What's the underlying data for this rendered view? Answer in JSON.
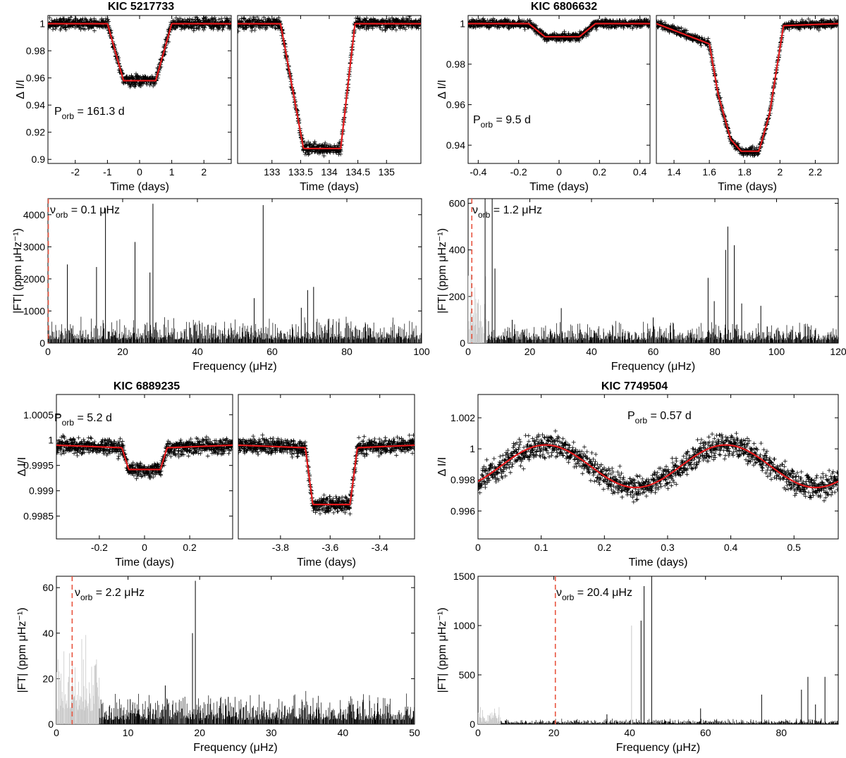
{
  "chart_data": [
    {
      "id": "kic5217733-lc",
      "type": "scatter",
      "title": "KIC 5217733",
      "ylabel": "Δ I/I",
      "ylim": [
        0.897,
        1.006
      ],
      "yticks": [
        "0.9",
        "0.92",
        "0.94",
        "0.96",
        "0.98",
        "1"
      ],
      "annotation": {
        "main": "P",
        "sub": "orb",
        "rest": " = 161.3 d"
      },
      "colors": {
        "points": "#000000",
        "model": "#e41a1c"
      },
      "panels": [
        {
          "xlabel": "Time (days)",
          "xlim": [
            -2.85,
            2.85
          ],
          "xticks": [
            "-2",
            "-1",
            "0",
            "1",
            "2"
          ],
          "model": {
            "x": [
              -2.85,
              -1.0,
              -0.5,
              0.5,
              1.0,
              2.85
            ],
            "y": [
              1.0,
              1.0,
              0.958,
              0.958,
              1.0,
              1.0
            ]
          }
        },
        {
          "xlabel": "Time (days)",
          "xlim": [
            132.4,
            135.6
          ],
          "xticks": [
            "133",
            "133.5",
            "134",
            "134.5",
            "135"
          ],
          "model": {
            "x": [
              132.4,
              133.15,
              133.55,
              134.2,
              134.45,
              135.6
            ],
            "y": [
              1.0,
              1.0,
              0.908,
              0.908,
              1.0,
              1.0
            ]
          }
        }
      ]
    },
    {
      "id": "kic5217733-ft",
      "type": "line",
      "xlabel": "Frequency (μHz)",
      "ylabel": "|FT| (ppm μHz⁻¹)",
      "xlim": [
        0,
        100
      ],
      "ylim": [
        0,
        4500
      ],
      "xticks": [
        "0",
        "20",
        "40",
        "60",
        "80",
        "100"
      ],
      "yticks": [
        "0",
        "1000",
        "2000",
        "3000",
        "4000"
      ],
      "nu_orb": 0.1,
      "annotation": {
        "main": "ν",
        "sub": "orb",
        "rest": " = 0.1 μHz"
      },
      "peaks": [
        [
          5.2,
          2450
        ],
        [
          13.0,
          2370
        ],
        [
          15.4,
          4200
        ],
        [
          23.3,
          3150
        ],
        [
          27.3,
          2200
        ],
        [
          28.1,
          4340
        ],
        [
          57.6,
          4300
        ],
        [
          55.2,
          1400
        ],
        [
          69.5,
          1650
        ],
        [
          71.1,
          1750
        ],
        [
          67.8,
          1100
        ],
        [
          75.0,
          700
        ],
        [
          85.0,
          600
        ]
      ],
      "noise_level": 350
    },
    {
      "id": "kic6806632-lc",
      "type": "scatter",
      "title": "KIC 6806632",
      "ylabel": "Δ I/I",
      "ylim": [
        0.931,
        1.004
      ],
      "yticks": [
        "0.94",
        "0.96",
        "0.98",
        "1"
      ],
      "annotation": {
        "main": "P",
        "sub": "orb",
        "rest": " = 9.5 d"
      },
      "colors": {
        "points": "#000000",
        "model": "#e41a1c"
      },
      "panels": [
        {
          "xlabel": "Time (days)",
          "xlim": [
            -0.45,
            0.45
          ],
          "xticks": [
            "-0.4",
            "-0.2",
            "0",
            "0.2",
            "0.4"
          ],
          "model": {
            "x": [
              -0.45,
              -0.15,
              -0.07,
              0.1,
              0.18,
              0.45
            ],
            "y": [
              1.0,
              1.0,
              0.9935,
              0.9935,
              1.0,
              1.0
            ]
          }
        },
        {
          "xlabel": "Time (days)",
          "xlim": [
            1.3,
            2.33
          ],
          "xticks": [
            "1.4",
            "1.6",
            "1.8",
            "2",
            "2.2"
          ],
          "model": {
            "x": [
              1.3,
              1.6,
              1.65,
              1.72,
              1.78,
              1.88,
              1.94,
              2.02,
              2.33
            ],
            "y": [
              1.0,
              0.99,
              0.965,
              0.943,
              0.937,
              0.937,
              0.955,
              0.999,
              1.0
            ]
          }
        }
      ]
    },
    {
      "id": "kic6806632-ft",
      "type": "line",
      "xlabel": "Frequency (μHz)",
      "ylabel": "|FT| (ppm μHz⁻¹)",
      "xlim": [
        0,
        120
      ],
      "ylim": [
        0,
        620
      ],
      "xticks": [
        "0",
        "20",
        "40",
        "60",
        "80",
        "100",
        "120"
      ],
      "yticks": [
        "0",
        "200",
        "400",
        "600"
      ],
      "nu_orb": 1.2,
      "annotation": {
        "main": "ν",
        "sub": "orb",
        "rest": " = 1.2 μHz"
      },
      "gray_until": 6,
      "peaks": [
        [
          5.5,
          620
        ],
        [
          7.8,
          620
        ],
        [
          8.7,
          320
        ],
        [
          14.3,
          100
        ],
        [
          30.2,
          150
        ],
        [
          60.0,
          110
        ],
        [
          77.8,
          280
        ],
        [
          79.8,
          180
        ],
        [
          84.2,
          500
        ],
        [
          83.5,
          400
        ],
        [
          86.3,
          420
        ],
        [
          88.7,
          170
        ],
        [
          94.9,
          160
        ],
        [
          97.0,
          70
        ]
      ],
      "noise_level": 40
    },
    {
      "id": "kic6889235-lc",
      "type": "scatter",
      "title": "KIC 6889235",
      "ylabel": "Δ I/I",
      "ylim": [
        0.99805,
        1.0009
      ],
      "yticks": [
        "0.9985",
        "0.999",
        "0.9995",
        "1",
        "1.0005"
      ],
      "annotation": {
        "main": "P",
        "sub": "orb",
        "rest": " = 5.2 d"
      },
      "colors": {
        "points": "#000000",
        "model": "#e41a1c"
      },
      "panels": [
        {
          "xlabel": "Time (days)",
          "xlim": [
            -0.39,
            0.39
          ],
          "xticks": [
            "-0.2",
            "0",
            "0.2"
          ],
          "model": {
            "x": [
              -0.39,
              -0.1,
              -0.07,
              0.07,
              0.1,
              0.39
            ],
            "y": [
              0.9999,
              0.99985,
              0.99942,
              0.99942,
              0.99985,
              0.9999
            ]
          }
        },
        {
          "xlabel": "Time (days)",
          "xlim": [
            -3.97,
            -3.26
          ],
          "xticks": [
            "-3.8",
            "-3.6",
            "-3.4"
          ],
          "model": {
            "x": [
              -3.97,
              -3.7,
              -3.67,
              -3.52,
              -3.49,
              -3.26
            ],
            "y": [
              0.9999,
              0.99985,
              0.99873,
              0.99873,
              0.99985,
              0.9999
            ]
          }
        }
      ]
    },
    {
      "id": "kic7749504-lc",
      "type": "scatter",
      "title": "KIC 7749504",
      "xlabel": "Time (days)",
      "ylabel": "Δ I/I",
      "xlim": [
        0,
        0.57
      ],
      "ylim": [
        0.9942,
        1.0035
      ],
      "xticks": [
        "0",
        "0.1",
        "0.2",
        "0.3",
        "0.4",
        "0.5"
      ],
      "yticks": [
        "0.996",
        "0.998",
        "1",
        "1.002"
      ],
      "annotation": {
        "main": "P",
        "sub": "orb",
        "rest": " = 0.57 d"
      },
      "colors": {
        "points": "#000000",
        "model": "#e41a1c"
      },
      "model": {
        "period": 0.285,
        "mean": 0.99888,
        "amplitude": 0.00137,
        "phase_peak": 0.107
      }
    },
    {
      "id": "kic6889235-ft",
      "type": "line",
      "xlabel": "Frequency (μHz)",
      "ylabel": "|FT| (ppm μHz⁻¹)",
      "xlim": [
        0,
        50
      ],
      "ylim": [
        0,
        65
      ],
      "xticks": [
        "0",
        "10",
        "20",
        "30",
        "40",
        "50"
      ],
      "yticks": [
        "0",
        "20",
        "40",
        "60"
      ],
      "nu_orb": 2.2,
      "annotation": {
        "main": "ν",
        "sub": "orb",
        "rest": " = 2.2 μHz"
      },
      "gray_until": 6,
      "peaks": [
        [
          19.4,
          63
        ],
        [
          19.0,
          40
        ],
        [
          15.2,
          17
        ],
        [
          24.0,
          12
        ],
        [
          29.0,
          10
        ],
        [
          35.5,
          8
        ],
        [
          10.3,
          11
        ]
      ],
      "noise_level": 6
    },
    {
      "id": "kic7749504-ft",
      "type": "line",
      "xlabel": "Frequency (μHz)",
      "ylabel": "|FT| (ppm μHz⁻¹)",
      "xlim": [
        0,
        95
      ],
      "ylim": [
        0,
        1500
      ],
      "xticks": [
        "0",
        "20",
        "40",
        "60",
        "80"
      ],
      "yticks": [
        "0",
        "500",
        "1000",
        "1500"
      ],
      "nu_orb": 20.4,
      "annotation": {
        "main": "ν",
        "sub": "orb",
        "rest": " = 20.4 μHz"
      },
      "gray_until": 6,
      "gray_peaks": [
        [
          40.5,
          1000
        ]
      ],
      "peaks": [
        [
          43.0,
          1050
        ],
        [
          43.8,
          1400
        ],
        [
          45.8,
          1500
        ],
        [
          58.7,
          160
        ],
        [
          74.8,
          300
        ],
        [
          85.3,
          350
        ],
        [
          87.0,
          480
        ],
        [
          91.5,
          480
        ],
        [
          89.0,
          200
        ],
        [
          34.0,
          100
        ]
      ],
      "noise_level": 25
    }
  ]
}
